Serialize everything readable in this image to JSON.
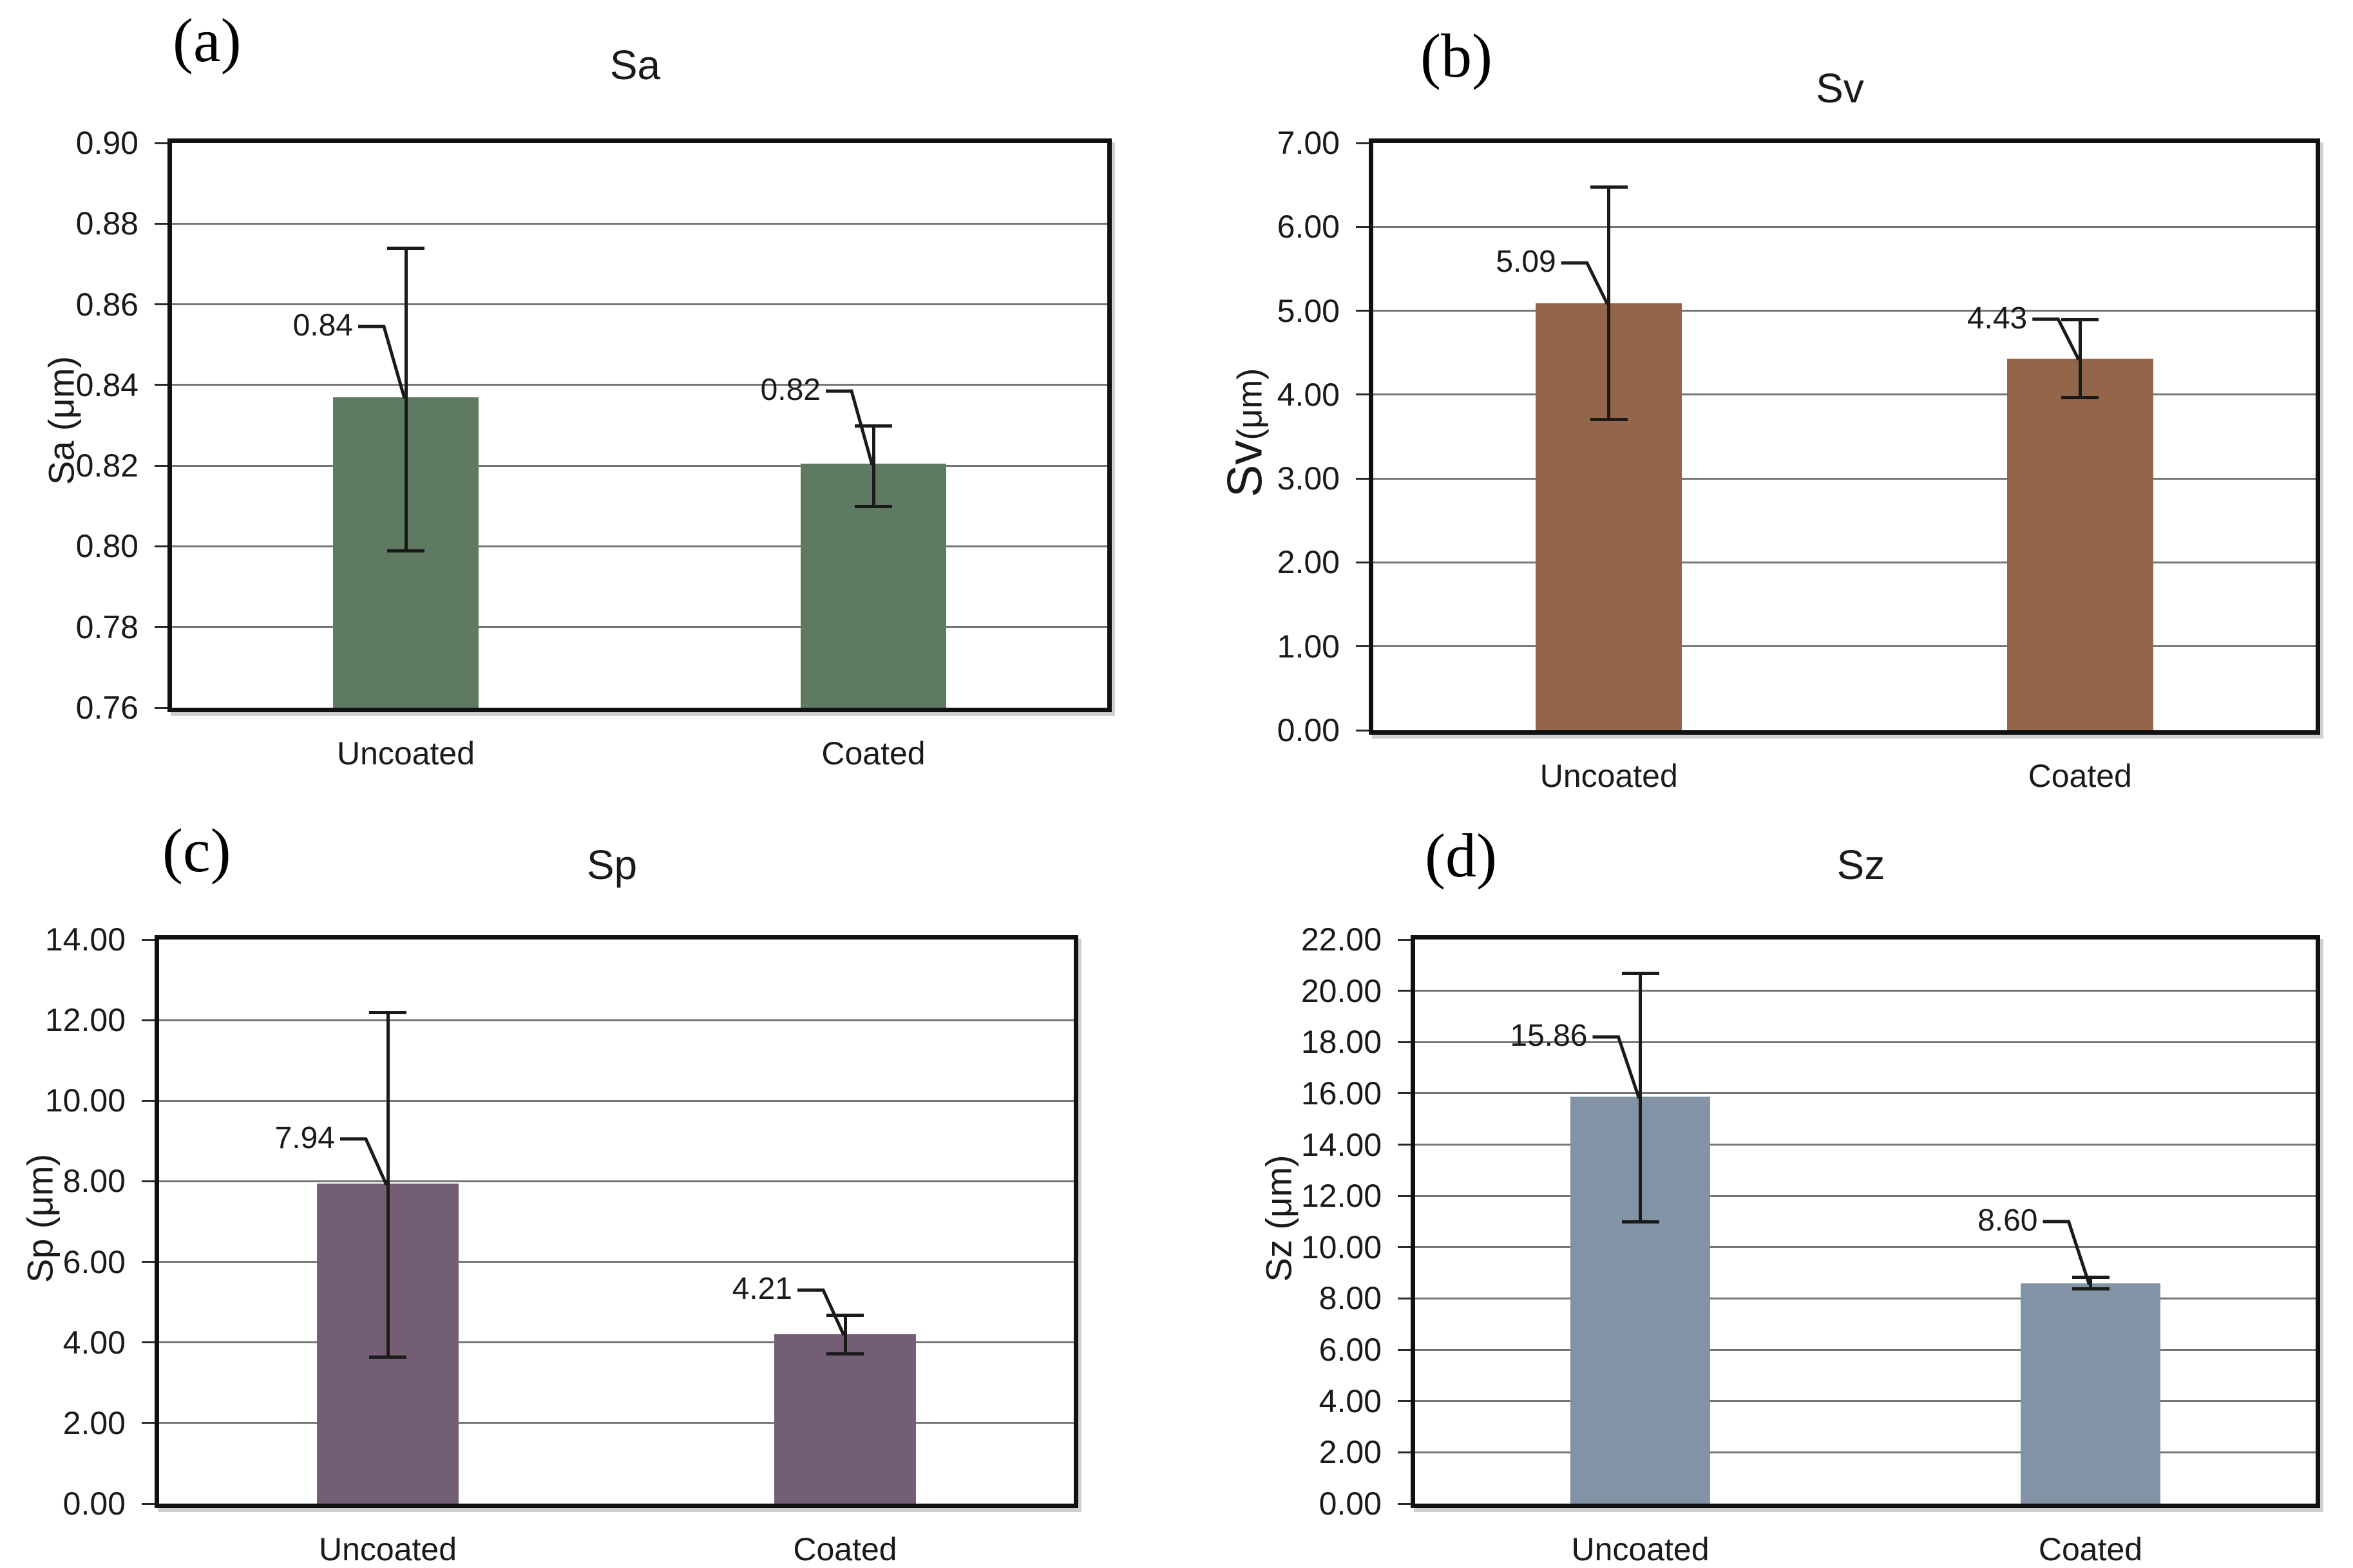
{
  "figure": {
    "background": "#ffffff",
    "colors": {
      "gridline": "#757575",
      "frame": "#111111",
      "text": "#1a1a1a",
      "error_bar": "#1a1a1a"
    }
  },
  "chart_data": [
    {
      "type": "bar",
      "panel_letter": "(a)",
      "title": "Sa",
      "ylabel_main": "Sa",
      "ylabel_unit": " (μm)",
      "ylabel_big_main": false,
      "categories": [
        "Uncoated",
        "Coated"
      ],
      "values": [
        0.837,
        0.8205
      ],
      "bar_labels": [
        "0.84",
        "0.82"
      ],
      "error_high": [
        0.874,
        0.83
      ],
      "error_low": [
        0.799,
        0.81
      ],
      "label_y": [
        0.8545,
        0.8385
      ],
      "ylim": [
        0.76,
        0.9
      ],
      "ytick_step": 0.02,
      "ytick_decimals": 2,
      "yticks": [
        "0.76",
        "0.78",
        "0.80",
        "0.82",
        "0.84",
        "0.86",
        "0.88",
        "0.90"
      ],
      "bar_color": "#5e7a60",
      "grid": true,
      "legend": "none"
    },
    {
      "type": "bar",
      "panel_letter": "(b)",
      "title": "Sv",
      "ylabel_main": "Sv",
      "ylabel_unit": "(μm)",
      "ylabel_big_main": true,
      "categories": [
        "Uncoated",
        "Coated"
      ],
      "values": [
        5.09,
        4.43
      ],
      "bar_labels": [
        "5.09",
        "4.43"
      ],
      "error_high": [
        6.48,
        4.9
      ],
      "error_low": [
        3.71,
        3.97
      ],
      "label_y": [
        5.57,
        4.9
      ],
      "ylim": [
        0,
        7
      ],
      "ytick_step": 1,
      "ytick_decimals": 2,
      "yticks": [
        "0.00",
        "1.00",
        "2.00",
        "3.00",
        "4.00",
        "5.00",
        "6.00",
        "7.00"
      ],
      "bar_color": "#93664a",
      "grid": true,
      "legend": "none"
    },
    {
      "type": "bar",
      "panel_letter": "(c)",
      "title": "Sp",
      "ylabel_main": "Sp",
      "ylabel_unit": " (μm)",
      "ylabel_big_main": false,
      "categories": [
        "Uncoated",
        "Coated"
      ],
      "values": [
        7.94,
        4.21
      ],
      "bar_labels": [
        "7.94",
        "4.21"
      ],
      "error_high": [
        12.2,
        4.68
      ],
      "error_low": [
        3.65,
        3.72
      ],
      "label_y": [
        9.05,
        5.3
      ],
      "ylim": [
        0,
        14
      ],
      "ytick_step": 2,
      "ytick_decimals": 2,
      "yticks": [
        "0.00",
        "2.00",
        "4.00",
        "6.00",
        "8.00",
        "10.00",
        "12.00",
        "14.00"
      ],
      "bar_color": "#745e75",
      "grid": true,
      "legend": "none"
    },
    {
      "type": "bar",
      "panel_letter": "(d)",
      "title": "Sz",
      "ylabel_main": "Sz",
      "ylabel_unit": " (μm)",
      "ylabel_big_main": false,
      "categories": [
        "Uncoated",
        "Coated"
      ],
      "values": [
        15.86,
        8.6
      ],
      "bar_labels": [
        "15.86",
        "8.60"
      ],
      "error_high": [
        20.7,
        8.85
      ],
      "error_low": [
        11.0,
        8.38
      ],
      "label_y": [
        18.2,
        11.0
      ],
      "ylim": [
        0,
        22
      ],
      "ytick_step": 2,
      "ytick_decimals": 2,
      "yticks": [
        "0.00",
        "2.00",
        "4.00",
        "6.00",
        "8.00",
        "10.00",
        "12.00",
        "14.00",
        "16.00",
        "18.00",
        "20.00",
        "22.00"
      ],
      "bar_color": "#8193a5",
      "grid": true,
      "legend": "none"
    }
  ]
}
